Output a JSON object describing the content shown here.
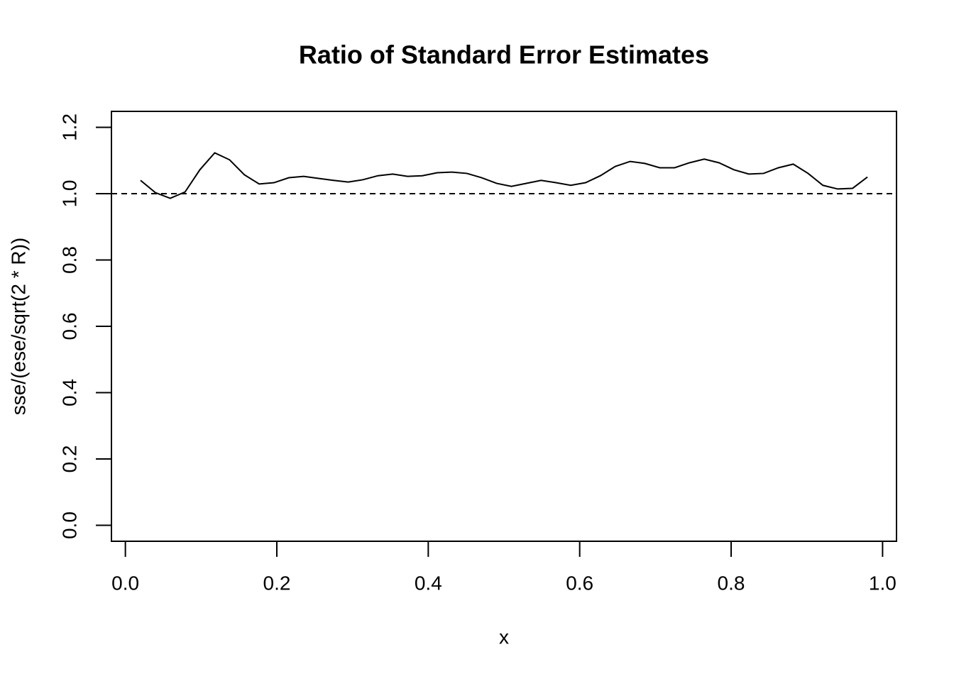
{
  "chart_data": {
    "type": "line",
    "title": "Ratio of Standard Error Estimates",
    "x_label": "x",
    "y_label": "sse/(ese/sqrt(2 * R))",
    "x": [
      0.02,
      0.0396,
      0.0592,
      0.0788,
      0.0984,
      0.118,
      0.1376,
      0.1571,
      0.1767,
      0.1963,
      0.2159,
      0.2355,
      0.2551,
      0.2747,
      0.2943,
      0.3139,
      0.3335,
      0.3531,
      0.3727,
      0.3922,
      0.4118,
      0.4314,
      0.451,
      0.4706,
      0.4902,
      0.5098,
      0.5294,
      0.549,
      0.5686,
      0.5882,
      0.6078,
      0.6273,
      0.6469,
      0.6665,
      0.6861,
      0.7057,
      0.7253,
      0.7449,
      0.7645,
      0.7841,
      0.8037,
      0.8233,
      0.8429,
      0.8624,
      0.882,
      0.9016,
      0.9212,
      0.9408,
      0.9604,
      0.98
    ],
    "series": [
      {
        "color": "#000000",
        "values": [
          1.04,
          1.003,
          0.986,
          1.005,
          1.072,
          1.123,
          1.102,
          1.057,
          1.029,
          1.033,
          1.048,
          1.052,
          1.046,
          1.04,
          1.035,
          1.042,
          1.054,
          1.059,
          1.052,
          1.054,
          1.063,
          1.065,
          1.061,
          1.048,
          1.031,
          1.022,
          1.031,
          1.04,
          1.033,
          1.025,
          1.033,
          1.054,
          1.082,
          1.097,
          1.091,
          1.078,
          1.078,
          1.093,
          1.104,
          1.093,
          1.072,
          1.059,
          1.061,
          1.078,
          1.089,
          1.061,
          1.025,
          1.014,
          1.016,
          1.05
        ]
      }
    ],
    "hline": 1,
    "xlim": [
      -0.0184,
      1.0184
    ],
    "ylim": [
      -0.048,
      1.248
    ],
    "xticks": [
      {
        "value": 0,
        "label": "0.0"
      },
      {
        "value": 0.2,
        "label": "0.2"
      },
      {
        "value": 0.4,
        "label": "0.4"
      },
      {
        "value": 0.6,
        "label": "0.6"
      },
      {
        "value": 0.8,
        "label": "0.8"
      },
      {
        "value": 1,
        "label": "1.0"
      }
    ],
    "yticks": [
      {
        "value": 0,
        "label": "0.0"
      },
      {
        "value": 0.2,
        "label": "0.2"
      },
      {
        "value": 0.4,
        "label": "0.4"
      },
      {
        "value": 0.6,
        "label": "0.6"
      },
      {
        "value": 0.8,
        "label": "0.8"
      },
      {
        "value": 1,
        "label": "1.0"
      },
      {
        "value": 1.2,
        "label": "1.2"
      }
    ]
  }
}
